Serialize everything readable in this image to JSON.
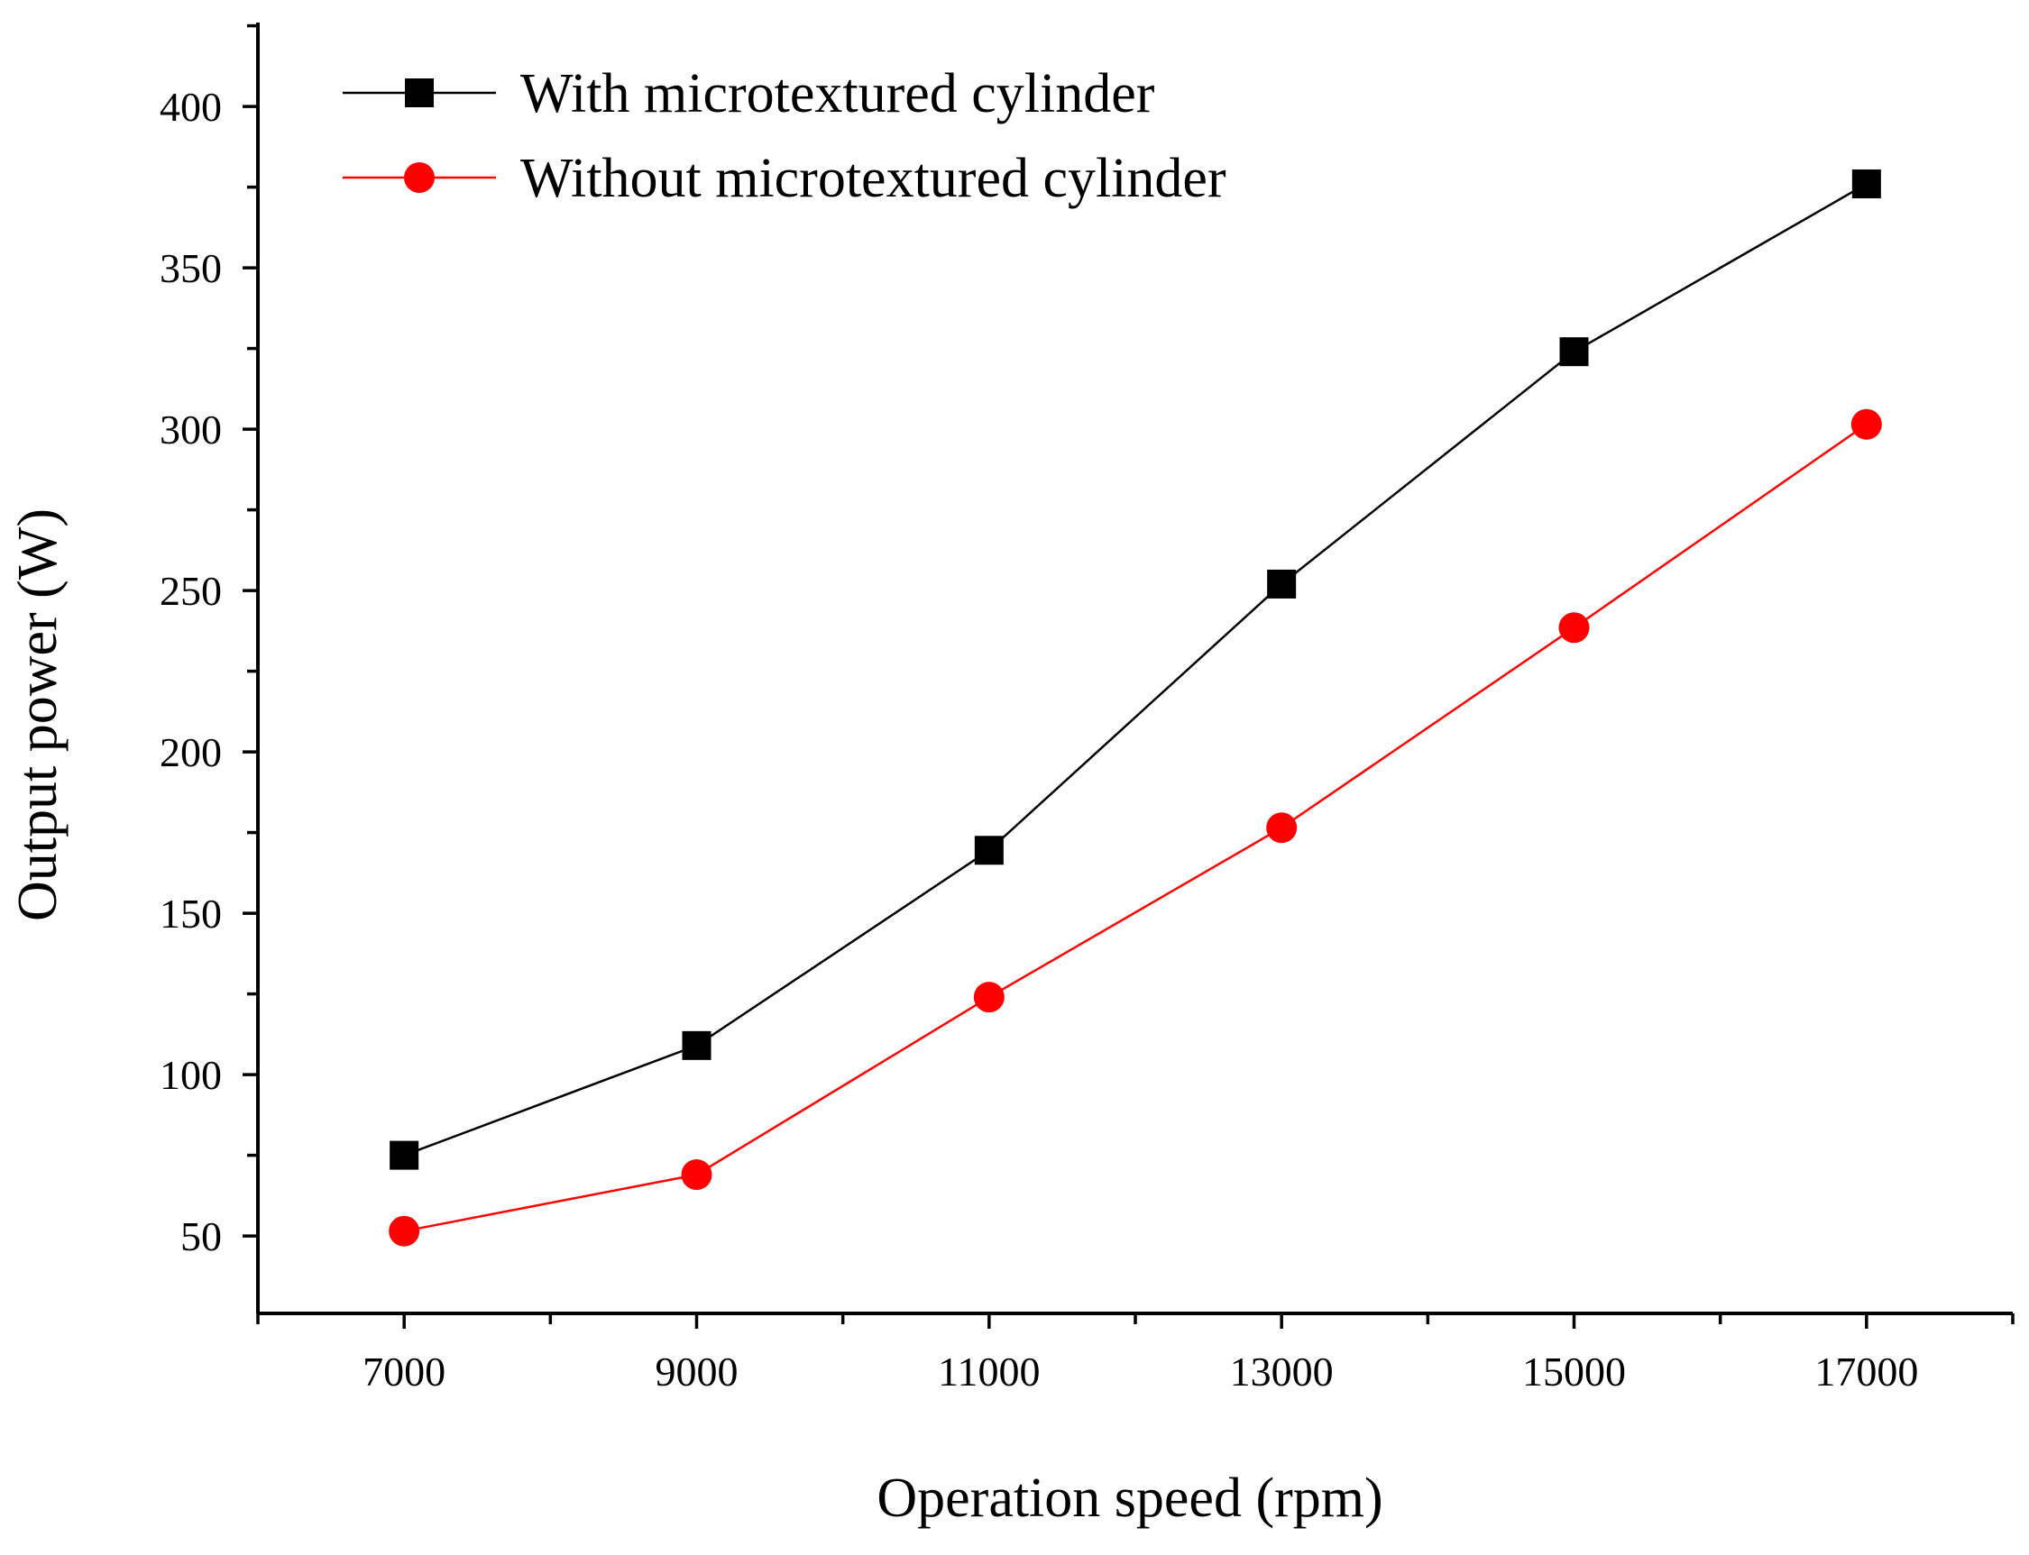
{
  "chart_data": {
    "type": "line",
    "title": "",
    "xlabel": "Operation speed (rpm)",
    "ylabel": "Output power (W)",
    "xlim": [
      6000,
      18000
    ],
    "ylim": [
      26,
      426
    ],
    "x": [
      7000,
      9000,
      11000,
      13000,
      15000,
      17000
    ],
    "x_ticks": [
      7000,
      9000,
      11000,
      13000,
      15000,
      17000
    ],
    "x_tick_labels": [
      "7000",
      "9000",
      "11000",
      "13000",
      "15000",
      "17000"
    ],
    "y_ticks": [
      50,
      100,
      150,
      200,
      250,
      300,
      350,
      400
    ],
    "y_tick_labels": [
      "50",
      "100",
      "150",
      "200",
      "250",
      "300",
      "350",
      "400"
    ],
    "grid": false,
    "legend_position": "top-left",
    "series": [
      {
        "name": "With microtextured cylinder",
        "color": "#000000",
        "marker": "square",
        "values": [
          75,
          109,
          169.5,
          252,
          324,
          376
        ]
      },
      {
        "name": "Without microtextured cylinder",
        "color": "#ff0000",
        "marker": "circle",
        "values": [
          51.5,
          69,
          124,
          176.5,
          238.5,
          301.5
        ]
      }
    ]
  }
}
